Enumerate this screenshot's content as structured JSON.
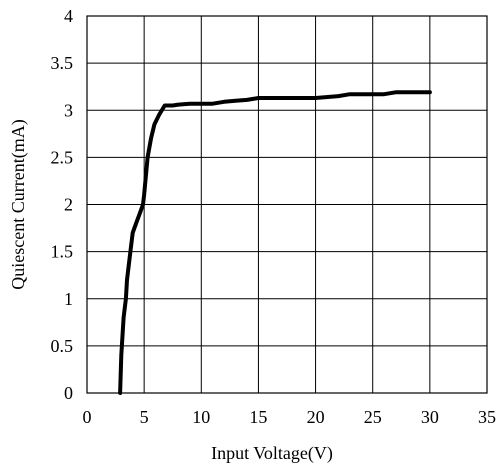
{
  "chart_data": {
    "type": "line",
    "title": "",
    "xlabel": "Input Voltage(V)",
    "ylabel": "Quiescent Current(mA)",
    "xlim": [
      0,
      35
    ],
    "ylim": [
      0,
      4
    ],
    "x_ticks": [
      0,
      5,
      10,
      15,
      20,
      25,
      30,
      35
    ],
    "y_ticks": [
      0,
      0.5,
      1,
      1.5,
      2,
      2.5,
      3,
      3.5,
      4
    ],
    "x_tick_labels": [
      "0",
      "5",
      "10",
      "15",
      "20",
      "25",
      "30",
      "35"
    ],
    "y_tick_labels": [
      "0",
      "0.5",
      "1",
      "1.5",
      "2",
      "2.5",
      "3",
      "3.5",
      "4"
    ],
    "grid": true,
    "legend": "none",
    "line_color": "#000000",
    "grid_color": "#000000",
    "series": [
      {
        "x": [
          2.9,
          3.0,
          3.2,
          3.4,
          3.5,
          3.8,
          4.0,
          4.3,
          4.6,
          4.9,
          5.0,
          5.3,
          5.6,
          5.9,
          6.3,
          6.8,
          7.5,
          8.0,
          9.0,
          10.0,
          11.0,
          12.0,
          13.0,
          14.0,
          15.0,
          16.0,
          18.0,
          20.0,
          22.0,
          23.0,
          24.0,
          25.0,
          26.0,
          27.0,
          28.0,
          30.0
        ],
        "y": [
          0.0,
          0.4,
          0.8,
          1.0,
          1.2,
          1.5,
          1.7,
          1.8,
          1.9,
          2.0,
          2.1,
          2.5,
          2.7,
          2.85,
          2.95,
          3.05,
          3.05,
          3.06,
          3.07,
          3.07,
          3.07,
          3.09,
          3.1,
          3.11,
          3.13,
          3.13,
          3.13,
          3.13,
          3.15,
          3.17,
          3.17,
          3.17,
          3.17,
          3.19,
          3.19,
          3.19
        ]
      }
    ]
  }
}
